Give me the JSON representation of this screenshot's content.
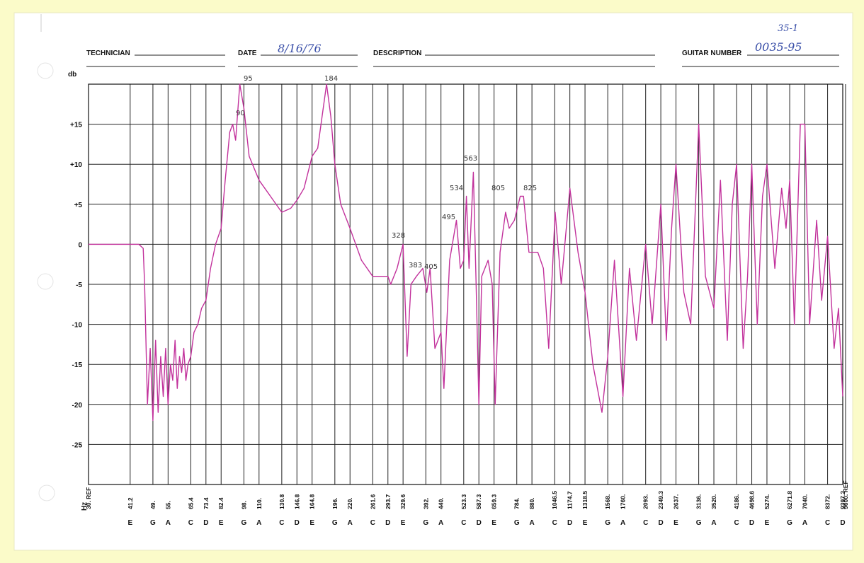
{
  "header": {
    "technician_label": "TECHNICIAN",
    "date_label": "DATE",
    "date": "8/16/76",
    "description_label": "DESCRIPTION",
    "guitar_number_label": "GUITAR NUMBER",
    "guitar_number": "0035-95",
    "corner_note": "35-1"
  },
  "chart_data": {
    "type": "line",
    "y_label": "db",
    "x_label": "Hz",
    "log_x": true,
    "grid": true,
    "color": "#c2329c",
    "xlim": [
      30,
      9397.2
    ],
    "ylim": [
      -30,
      20
    ],
    "yticks": [
      {
        "value": 15,
        "label": "+15"
      },
      {
        "value": 10,
        "label": "+10"
      },
      {
        "value": 5,
        "label": "+5"
      },
      0,
      -5,
      -10,
      -15,
      -20,
      -25
    ],
    "xticks": [
      {
        "value": 30,
        "label": "30. REF"
      },
      41.2,
      {
        "value": 49,
        "label": "49."
      },
      {
        "value": 55,
        "label": "55."
      },
      65.4,
      73.4,
      82.4,
      {
        "value": 98,
        "label": "98."
      },
      {
        "value": 110,
        "label": "110."
      },
      130.8,
      146.8,
      164.8,
      {
        "value": 196,
        "label": "196."
      },
      {
        "value": 220,
        "label": "220."
      },
      261.6,
      293.7,
      329.6,
      {
        "value": 392,
        "label": "392."
      },
      {
        "value": 440,
        "label": "440."
      },
      523.3,
      587.3,
      659.3,
      {
        "value": 784,
        "label": "784."
      },
      {
        "value": 880,
        "label": "880."
      },
      1046.5,
      1174.7,
      1318.5,
      {
        "value": 1568,
        "label": "1568."
      },
      {
        "value": 1760,
        "label": "1760."
      },
      {
        "value": 2093,
        "label": "2093."
      },
      2349.3,
      {
        "value": 2637,
        "label": "2637."
      },
      {
        "value": 3136,
        "label": "3136."
      },
      {
        "value": 3520,
        "label": "3520."
      },
      {
        "value": 4186,
        "label": "4186."
      },
      4698.6,
      {
        "value": 5274,
        "label": "5274."
      },
      6271.8,
      {
        "value": 7040,
        "label": "7040."
      },
      {
        "value": 8372,
        "label": "8372."
      },
      {
        "value": 9600,
        "label": "9600. REF"
      },
      9397.2
    ],
    "x_notes": [
      null,
      "E",
      "G",
      "A",
      "C",
      "D",
      "E",
      "G",
      "A",
      "C",
      "D",
      "E",
      "G",
      "A",
      "C",
      "D",
      "E",
      "G",
      "A",
      "C",
      "D",
      "E",
      "G",
      "A",
      "C",
      "D",
      "E",
      "G",
      "A",
      "C",
      "D",
      "E",
      "G",
      "A",
      "C",
      "D",
      "E",
      "G",
      "A",
      "C",
      null,
      "D"
    ],
    "x": [
      30,
      36,
      40,
      44,
      45.5,
      46,
      47,
      48,
      49,
      50,
      51,
      52,
      53,
      54,
      55,
      56,
      57,
      58,
      59,
      60,
      61,
      62,
      63,
      64,
      65.4,
      67,
      69,
      71,
      73.4,
      76,
      79,
      82.4,
      85,
      88,
      90,
      92,
      95,
      98,
      102,
      110,
      120,
      130.8,
      140,
      146.8,
      155,
      164.8,
      172,
      184,
      190,
      196,
      205,
      220,
      240,
      261.6,
      280,
      293.7,
      300,
      315,
      329.6,
      340,
      350,
      365,
      383,
      395,
      405,
      420,
      440,
      450,
      470,
      495,
      510,
      523.3,
      534,
      545,
      563,
      575,
      587.3,
      600,
      630,
      650,
      665,
      690,
      720,
      740,
      770,
      805,
      825,
      860,
      880,
      920,
      960,
      1000,
      1050,
      1100,
      1174.7,
      1250,
      1318.5,
      1400,
      1500,
      1568,
      1650,
      1760,
      1850,
      1950,
      2093,
      2200,
      2349.3,
      2450,
      2550,
      2637,
      2800,
      2950,
      3136,
      3300,
      3520,
      3700,
      3900,
      4050,
      4186,
      4400,
      4550,
      4698.6,
      4900,
      5100,
      5274,
      5600,
      5900,
      6100,
      6271.8,
      6500,
      6800,
      7040,
      7300,
      7700,
      8000,
      8372,
      8800,
      9100,
      9397.2
    ],
    "values": [
      0,
      0,
      0,
      0,
      -0.5,
      -5,
      -20,
      -13,
      -22,
      -12,
      -21,
      -14,
      -19,
      -13,
      -20,
      -15,
      -17,
      -12,
      -18,
      -14,
      -16,
      -13,
      -17,
      -15,
      -14,
      -11,
      -10,
      -8,
      -7,
      -3,
      0,
      2,
      8,
      14,
      15,
      13,
      20,
      17,
      11,
      8,
      6,
      4,
      4.5,
      5.5,
      7,
      11,
      12,
      20,
      16,
      10,
      5,
      2,
      -2,
      -4,
      -4,
      -4,
      -5,
      -3,
      0,
      -14,
      -5,
      -4,
      -3,
      -6,
      -3,
      -13,
      -11,
      -18,
      -2,
      3,
      -3,
      -2,
      6,
      -3,
      9,
      -5,
      -20,
      -4,
      -2,
      -5,
      -20,
      -1,
      4,
      2,
      3,
      6,
      6,
      -1,
      -1,
      -1,
      -3,
      -13,
      4,
      -5,
      7,
      -1,
      -6,
      -15,
      -21,
      -14,
      -2,
      -19,
      -3,
      -12,
      0,
      -10,
      5,
      -12,
      2,
      10,
      -6,
      -10,
      15,
      -4,
      -8,
      8,
      -12,
      5,
      10,
      -13,
      -4,
      10,
      -10,
      6,
      10,
      -3,
      7,
      2,
      8,
      -10,
      15,
      15,
      -10,
      3,
      -7,
      1,
      -13,
      -8,
      -19
    ],
    "annotations": [
      "95",
      "90",
      "184",
      "328",
      "383",
      "405",
      "495",
      "534",
      "563",
      "805",
      "825"
    ]
  }
}
